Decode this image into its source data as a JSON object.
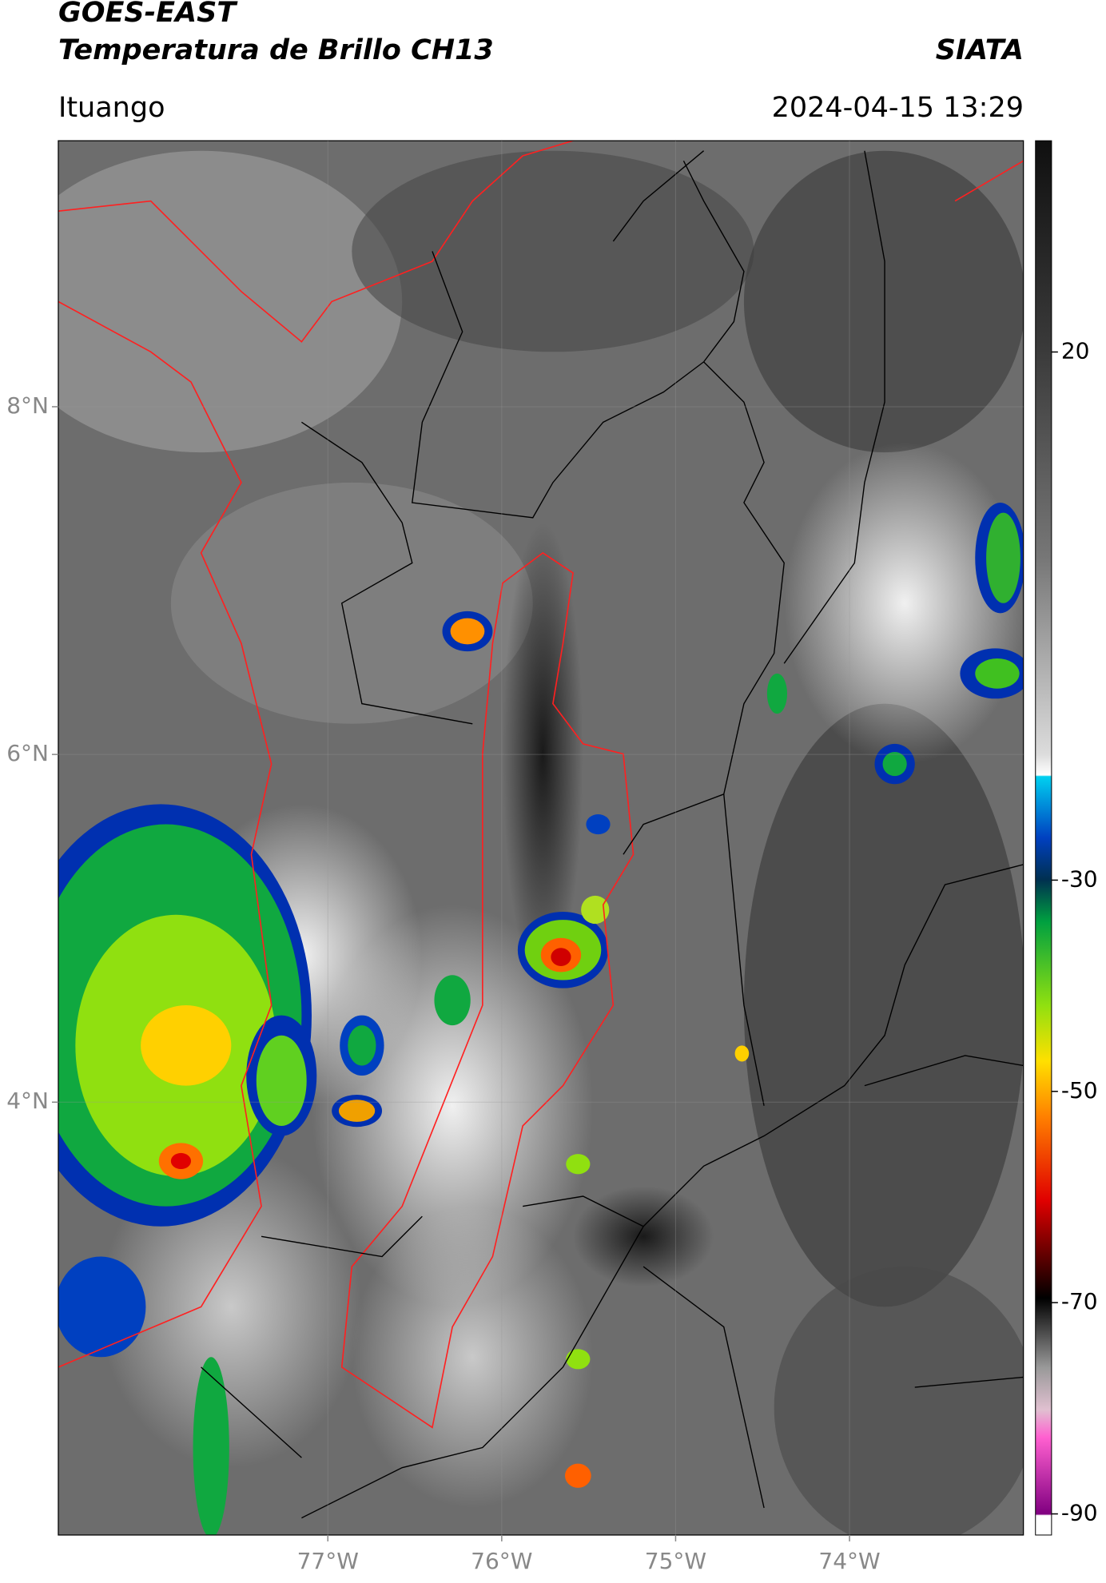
{
  "header": {
    "satellite": "GOES-EAST",
    "product": "Temperatura de Brillo CH13",
    "institution": "SIATA",
    "location": "Ituango",
    "datetime": "2024-04-15 13:29"
  },
  "map": {
    "xlim": [
      -78.55,
      -73.0
    ],
    "ylim": [
      1.51,
      9.53
    ],
    "xticks": [
      {
        "value": -77,
        "label": "77°W"
      },
      {
        "value": -76,
        "label": "76°W"
      },
      {
        "value": -75,
        "label": "75°W"
      },
      {
        "value": -74,
        "label": "74°W"
      }
    ],
    "yticks": [
      {
        "value": 8,
        "label": "8°N"
      },
      {
        "value": 6,
        "label": "6°N"
      },
      {
        "value": 4,
        "label": "4°N"
      }
    ],
    "grid": true
  },
  "colorbar": {
    "lim": [
      -92,
      40
    ],
    "ticks": [
      20,
      -30,
      -50,
      -70,
      -90
    ]
  }
}
